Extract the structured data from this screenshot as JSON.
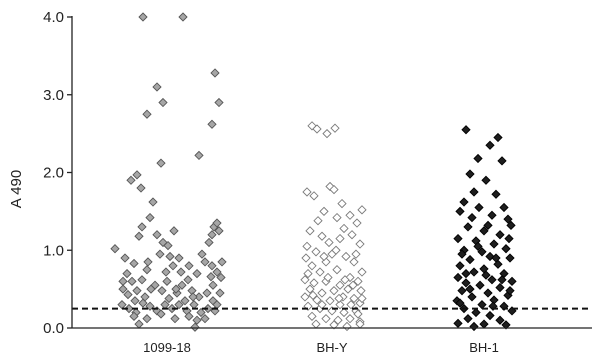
{
  "chart_data": {
    "type": "scatter",
    "title": "",
    "xlabel": "",
    "ylabel": "A 490",
    "ylim": [
      0,
      4.0
    ],
    "yticks": [
      "0.0",
      "1.0",
      "2.0",
      "3.0",
      "4.0"
    ],
    "categories": [
      "1099-18",
      "BH-Y",
      "BH-1"
    ],
    "grid": false,
    "cutoff_line": {
      "y": 0.25,
      "style": "dashed"
    },
    "colors": {
      "1099-18": {
        "fill": "#a6a6a6",
        "stroke": "#555555"
      },
      "BH-Y": {
        "fill": "#ffffff",
        "stroke": "#7a7a7a"
      },
      "BH-1": {
        "fill": "#1e1e1e",
        "stroke": "#000000"
      },
      "axis": "#222222",
      "cutoff": "#111111"
    },
    "series": [
      {
        "category": "1099-18",
        "points": [
          [
            -0.52,
            1.02
          ],
          [
            -0.24,
            4.0
          ],
          [
            0.16,
            4.0
          ],
          [
            -0.1,
            3.1
          ],
          [
            -0.04,
            2.9
          ],
          [
            0.48,
            3.28
          ],
          [
            0.52,
            2.9
          ],
          [
            0.32,
            2.22
          ],
          [
            0.45,
            2.62
          ],
          [
            -0.2,
            2.75
          ],
          [
            -0.06,
            2.12
          ],
          [
            -0.3,
            1.97
          ],
          [
            -0.36,
            1.9
          ],
          [
            -0.26,
            1.8
          ],
          [
            -0.14,
            1.62
          ],
          [
            -0.17,
            1.42
          ],
          [
            -0.1,
            1.2
          ],
          [
            -0.25,
            1.3
          ],
          [
            0.07,
            1.25
          ],
          [
            -0.28,
            1.18
          ],
          [
            -0.04,
            1.1
          ],
          [
            0.01,
            1.06
          ],
          [
            -0.42,
            0.9
          ],
          [
            -0.33,
            0.83
          ],
          [
            -0.2,
            0.75
          ],
          [
            -0.4,
            0.7
          ],
          [
            -0.07,
            0.95
          ],
          [
            0.03,
            0.92
          ],
          [
            0.06,
            0.8
          ],
          [
            0.12,
            0.9
          ],
          [
            0.21,
            0.62
          ],
          [
            0.35,
            0.95
          ],
          [
            0.42,
            1.1
          ],
          [
            0.45,
            1.2
          ],
          [
            0.47,
            1.3
          ],
          [
            0.5,
            1.35
          ],
          [
            0.52,
            1.25
          ],
          [
            0.38,
            0.85
          ],
          [
            0.45,
            0.8
          ],
          [
            0.5,
            0.72
          ],
          [
            0.54,
            0.65
          ],
          [
            0.55,
            0.85
          ],
          [
            0.3,
            0.7
          ],
          [
            0.22,
            0.8
          ],
          [
            0.14,
            0.72
          ],
          [
            -0.01,
            0.72
          ],
          [
            0.0,
            0.6
          ],
          [
            -0.12,
            0.55
          ],
          [
            -0.25,
            0.62
          ],
          [
            -0.35,
            0.6
          ],
          [
            -0.44,
            0.5
          ],
          [
            -0.39,
            0.43
          ],
          [
            -0.3,
            0.48
          ],
          [
            -0.22,
            0.4
          ],
          [
            -0.16,
            0.5
          ],
          [
            -0.05,
            0.48
          ],
          [
            0.02,
            0.38
          ],
          [
            0.1,
            0.45
          ],
          [
            0.18,
            0.35
          ],
          [
            0.25,
            0.48
          ],
          [
            0.32,
            0.4
          ],
          [
            0.4,
            0.45
          ],
          [
            0.46,
            0.35
          ],
          [
            0.5,
            0.3
          ],
          [
            0.53,
            0.45
          ],
          [
            -0.45,
            0.3
          ],
          [
            -0.38,
            0.25
          ],
          [
            -0.31,
            0.2
          ],
          [
            -0.24,
            0.32
          ],
          [
            -0.17,
            0.28
          ],
          [
            -0.1,
            0.22
          ],
          [
            -0.02,
            0.3
          ],
          [
            0.05,
            0.25
          ],
          [
            0.12,
            0.3
          ],
          [
            0.2,
            0.22
          ],
          [
            0.27,
            0.3
          ],
          [
            0.34,
            0.2
          ],
          [
            0.41,
            0.25
          ],
          [
            0.48,
            0.22
          ],
          [
            -0.33,
            0.15
          ],
          [
            -0.2,
            0.12
          ],
          [
            -0.06,
            0.18
          ],
          [
            0.08,
            0.12
          ],
          [
            0.22,
            0.15
          ],
          [
            0.3,
            0.1
          ],
          [
            0.38,
            0.12
          ],
          [
            0.28,
            0.01
          ],
          [
            -0.28,
            0.05
          ],
          [
            0.15,
            0.55
          ],
          [
            -0.44,
            0.6
          ],
          [
            0.46,
            0.55
          ],
          [
            -0.19,
            0.85
          ],
          [
            0.26,
            0.4
          ],
          [
            0.09,
            0.5
          ],
          [
            -0.32,
            0.35
          ],
          [
            0.44,
            0.66
          ]
        ]
      },
      {
        "category": "BH-Y",
        "points": [
          [
            -0.2,
            2.6
          ],
          [
            -0.15,
            2.56
          ],
          [
            -0.05,
            2.5
          ],
          [
            0.03,
            2.57
          ],
          [
            -0.02,
            1.82
          ],
          [
            0.02,
            1.78
          ],
          [
            -0.25,
            1.75
          ],
          [
            -0.18,
            1.7
          ],
          [
            0.1,
            1.6
          ],
          [
            0.3,
            1.52
          ],
          [
            0.05,
            1.42
          ],
          [
            -0.08,
            1.5
          ],
          [
            -0.14,
            1.38
          ],
          [
            0.18,
            1.45
          ],
          [
            0.25,
            1.35
          ],
          [
            0.12,
            1.28
          ],
          [
            -0.22,
            1.25
          ],
          [
            -0.1,
            1.18
          ],
          [
            -0.03,
            1.1
          ],
          [
            0.08,
            1.15
          ],
          [
            0.2,
            1.2
          ],
          [
            0.28,
            1.08
          ],
          [
            -0.25,
            1.05
          ],
          [
            -0.16,
            0.98
          ],
          [
            0.0,
            0.95
          ],
          [
            0.14,
            0.92
          ],
          [
            0.22,
            0.85
          ],
          [
            -0.06,
            0.85
          ],
          [
            -0.2,
            0.8
          ],
          [
            0.3,
            0.72
          ],
          [
            -0.24,
            0.7
          ],
          [
            -0.12,
            0.72
          ],
          [
            0.05,
            0.75
          ],
          [
            0.18,
            0.65
          ],
          [
            0.26,
            0.6
          ],
          [
            -0.27,
            0.62
          ],
          [
            -0.18,
            0.58
          ],
          [
            -0.06,
            0.6
          ],
          [
            0.08,
            0.55
          ],
          [
            0.16,
            0.5
          ],
          [
            0.29,
            0.48
          ],
          [
            -0.22,
            0.5
          ],
          [
            -0.1,
            0.45
          ],
          [
            0.02,
            0.48
          ],
          [
            0.11,
            0.4
          ],
          [
            0.22,
            0.38
          ],
          [
            -0.27,
            0.4
          ],
          [
            -0.15,
            0.36
          ],
          [
            -0.02,
            0.35
          ],
          [
            0.08,
            0.3
          ],
          [
            0.19,
            0.3
          ],
          [
            0.28,
            0.32
          ],
          [
            -0.24,
            0.28
          ],
          [
            -0.12,
            0.25
          ],
          [
            0.0,
            0.22
          ],
          [
            0.12,
            0.2
          ],
          [
            0.24,
            0.22
          ],
          [
            -0.2,
            0.15
          ],
          [
            -0.06,
            0.12
          ],
          [
            0.06,
            0.1
          ],
          [
            0.18,
            0.12
          ],
          [
            0.28,
            0.08
          ],
          [
            -0.16,
            0.05
          ],
          [
            0.02,
            0.04
          ],
          [
            0.15,
            0.02
          ],
          [
            0.28,
            0.05
          ],
          [
            -0.08,
            0.92
          ],
          [
            0.04,
            1.0
          ],
          [
            0.24,
            0.95
          ],
          [
            -0.26,
            0.9
          ],
          [
            -0.04,
            0.65
          ],
          [
            0.21,
            0.55
          ],
          [
            -0.19,
            0.42
          ],
          [
            0.13,
            0.62
          ],
          [
            0.3,
            0.38
          ],
          [
            -0.1,
            0.3
          ],
          [
            0.07,
            0.38
          ],
          [
            0.26,
            0.18
          ]
        ]
      },
      {
        "category": "BH-1",
        "points": [
          [
            -0.18,
            2.55
          ],
          [
            0.14,
            2.45
          ],
          [
            0.06,
            2.35
          ],
          [
            -0.06,
            2.18
          ],
          [
            0.18,
            2.15
          ],
          [
            -0.14,
            1.98
          ],
          [
            0.02,
            1.9
          ],
          [
            -0.1,
            1.75
          ],
          [
            0.12,
            1.72
          ],
          [
            -0.2,
            1.62
          ],
          [
            0.2,
            1.55
          ],
          [
            -0.05,
            1.55
          ],
          [
            -0.24,
            1.5
          ],
          [
            0.24,
            1.4
          ],
          [
            0.08,
            1.45
          ],
          [
            -0.12,
            1.42
          ],
          [
            0.27,
            1.32
          ],
          [
            -0.16,
            1.3
          ],
          [
            0.0,
            1.25
          ],
          [
            0.16,
            1.2
          ],
          [
            -0.26,
            1.15
          ],
          [
            -0.08,
            1.12
          ],
          [
            0.1,
            1.08
          ],
          [
            0.22,
            1.02
          ],
          [
            -0.2,
            1.0
          ],
          [
            -0.02,
            0.98
          ],
          [
            0.06,
            0.92
          ],
          [
            0.26,
            0.9
          ],
          [
            -0.14,
            0.88
          ],
          [
            -0.24,
            0.8
          ],
          [
            0.14,
            0.82
          ],
          [
            0.0,
            0.76
          ],
          [
            -0.1,
            0.72
          ],
          [
            0.2,
            0.7
          ],
          [
            -0.26,
            0.65
          ],
          [
            0.08,
            0.62
          ],
          [
            -0.18,
            0.58
          ],
          [
            0.28,
            0.6
          ],
          [
            -0.04,
            0.55
          ],
          [
            0.16,
            0.52
          ],
          [
            -0.22,
            0.48
          ],
          [
            0.04,
            0.45
          ],
          [
            0.24,
            0.42
          ],
          [
            -0.12,
            0.4
          ],
          [
            -0.27,
            0.35
          ],
          [
            0.1,
            0.36
          ],
          [
            -0.02,
            0.3
          ],
          [
            0.2,
            0.28
          ],
          [
            -0.2,
            0.25
          ],
          [
            0.28,
            0.22
          ],
          [
            -0.08,
            0.2
          ],
          [
            0.06,
            0.16
          ],
          [
            -0.16,
            0.12
          ],
          [
            0.16,
            0.1
          ],
          [
            -0.26,
            0.06
          ],
          [
            0.0,
            0.05
          ],
          [
            0.22,
            0.04
          ],
          [
            -0.1,
            0.02
          ],
          [
            0.12,
            0.9
          ],
          [
            -0.06,
            1.05
          ],
          [
            0.18,
            0.62
          ],
          [
            -0.22,
            0.95
          ],
          [
            0.25,
            1.15
          ],
          [
            0.04,
            1.32
          ],
          [
            -0.18,
            0.7
          ],
          [
            0.09,
            0.28
          ],
          [
            -0.14,
            0.5
          ],
          [
            0.26,
            0.48
          ],
          [
            0.02,
            0.68
          ],
          [
            -0.24,
            0.32
          ]
        ]
      }
    ]
  }
}
